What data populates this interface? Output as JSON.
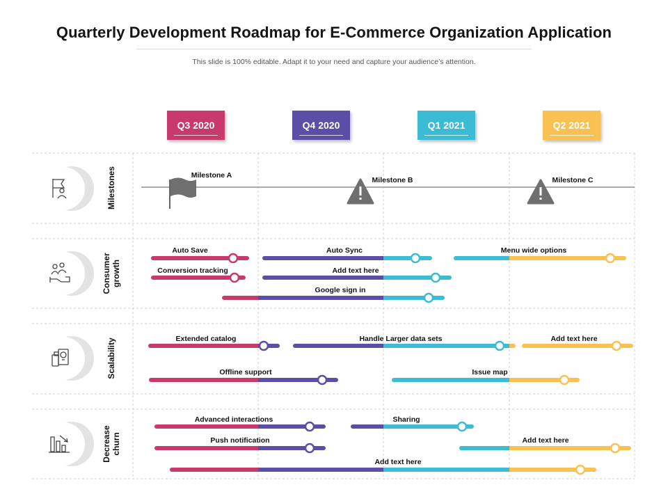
{
  "title": "Quarterly Development Roadmap for E-Commerce Organization Application",
  "subtitle": "This slide is 100% editable. Adapt it to your need and capture your audience’s attention.",
  "quarters": [
    {
      "label": "Q3 2020",
      "color": "#c93a6c"
    },
    {
      "label": "Q4 2020",
      "color": "#5b4ea6"
    },
    {
      "label": "Q1 2021",
      "color": "#3bbcd4"
    },
    {
      "label": "Q2 2021",
      "color": "#f9c152"
    }
  ],
  "rows": [
    {
      "label1": "Milestones",
      "label2": "",
      "icon": "flag-person-icon"
    },
    {
      "label1": "Consumer",
      "label2": "growth",
      "icon": "users-hand-icon"
    },
    {
      "label1": "Scalability",
      "label2": "",
      "icon": "devices-bulb-icon"
    },
    {
      "label1": "Decrease",
      "label2": "churn",
      "icon": "chart-down-icon"
    }
  ],
  "milestones": [
    {
      "label": "Milestone A",
      "icon": "flag-icon"
    },
    {
      "label": "Milestone B",
      "icon": "warning-icon"
    },
    {
      "label": "Milestone C",
      "icon": "warning-icon"
    }
  ],
  "tasks": {
    "consumer": [
      "Auto Save",
      "Conversion tracking",
      "Auto Sync",
      "Add text here",
      "Google sign in",
      "Menu wide options"
    ],
    "scalability": [
      "Extended catalog",
      "Handle Larger data sets",
      "Add text here",
      "Offline support",
      "Issue map"
    ],
    "churn": [
      "Advanced interactions",
      "Sharing",
      "Push notification",
      "Add text here",
      "Add text here"
    ]
  }
}
